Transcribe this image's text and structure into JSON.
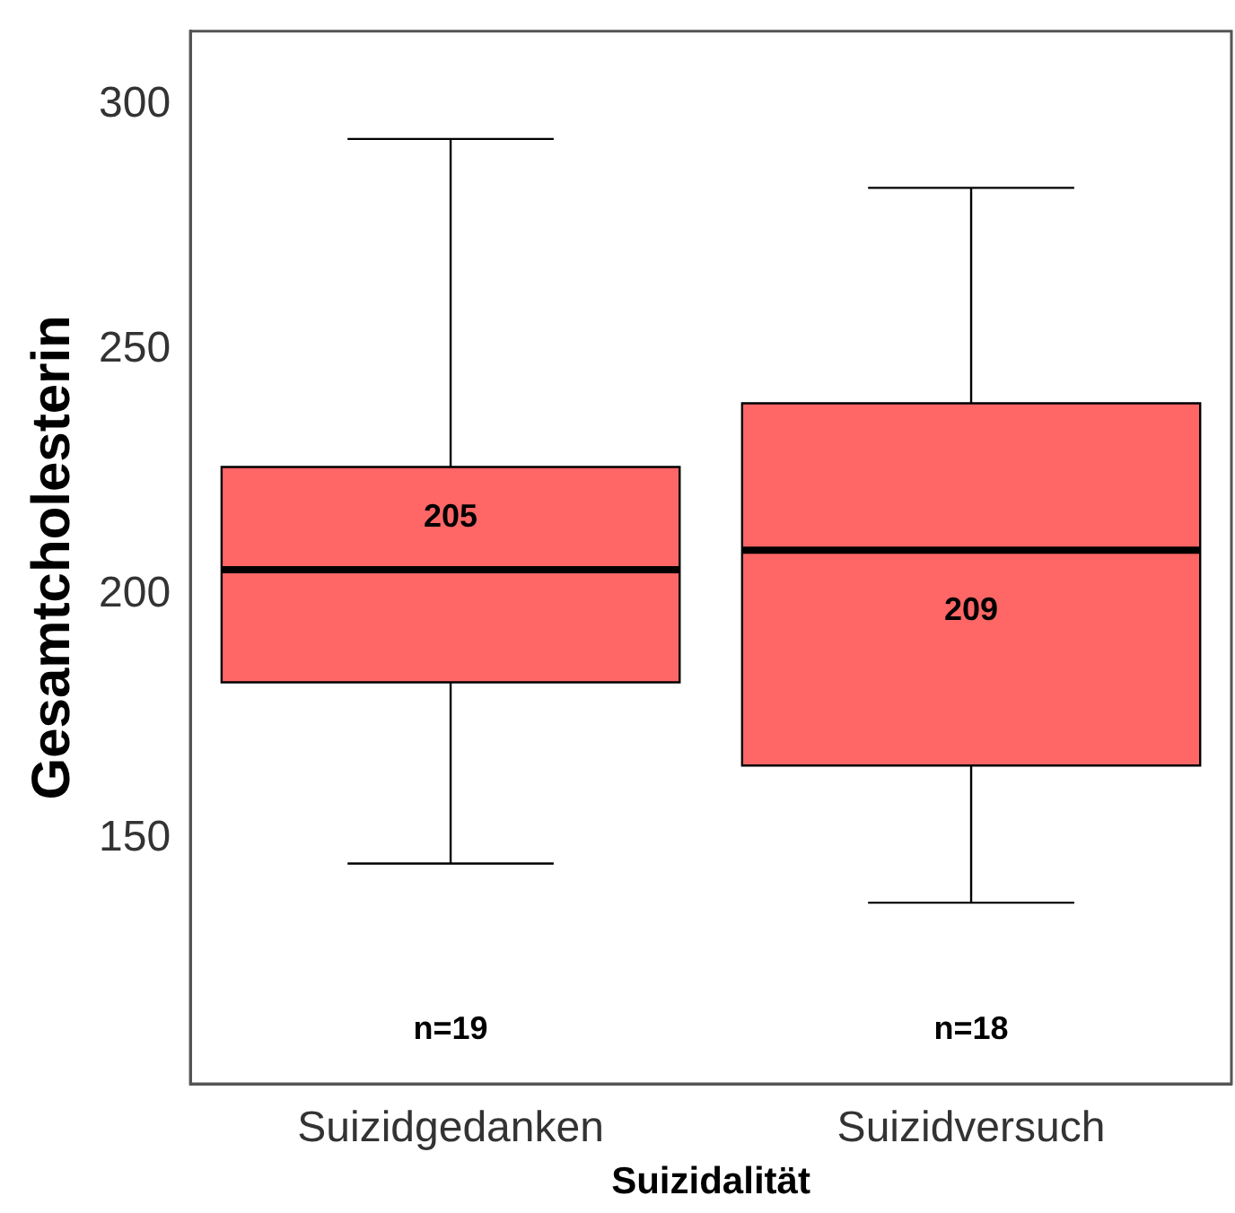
{
  "chart_data": {
    "type": "box",
    "xlabel": "Suizidalität",
    "ylabel": "Gesamtcholesterin",
    "categories": [
      "Suizidgedanken",
      "Suizidversuch"
    ],
    "boxes": [
      {
        "low": 145,
        "q1": 182,
        "median": 205,
        "q3": 226,
        "high": 293
      },
      {
        "low": 137,
        "q1": 165,
        "median": 209,
        "q3": 239,
        "high": 283
      }
    ],
    "color": "#ff6666",
    "ylim": [
      100,
      315
    ],
    "yticks": [
      150,
      200,
      250,
      300
    ],
    "grid": false,
    "legend": false,
    "annotations": [
      {
        "text": "205",
        "x": "Suizidgedanken",
        "y": 205
      },
      {
        "text": "209",
        "x": "Suizidversuch",
        "y": 209
      },
      "n=19",
      "n=18"
    ]
  }
}
